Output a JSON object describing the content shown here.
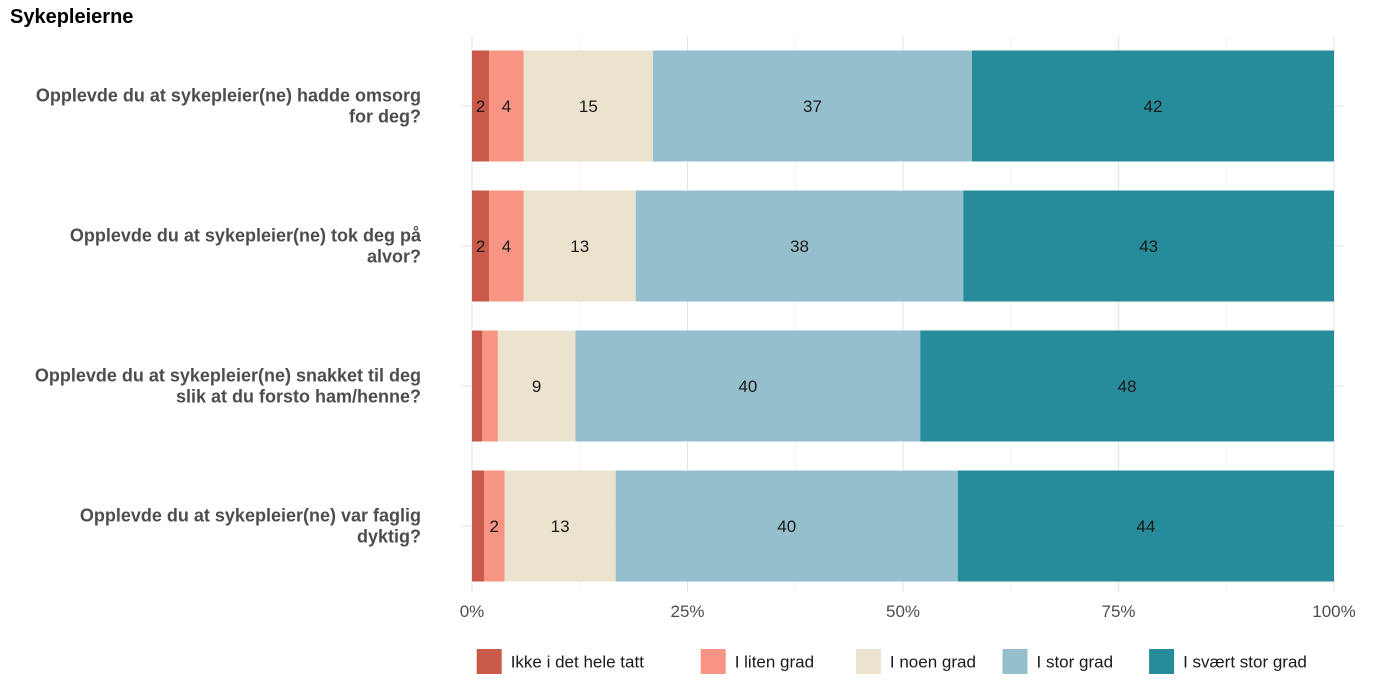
{
  "chart_data": {
    "type": "bar",
    "orientation": "horizontal",
    "stacked": "percent",
    "title": "Sykepleierne",
    "categories": [
      [
        "Opplevde du at sykepleier(ne) hadde omsorg",
        "for deg?"
      ],
      [
        "Opplevde du at sykepleier(ne) tok deg på",
        "alvor?"
      ],
      [
        "Opplevde du at sykepleier(ne) snakket til deg",
        "slik at du forsto ham/henne?"
      ],
      [
        "Opplevde du at sykepleier(ne) var faglig",
        "dyktig?"
      ]
    ],
    "series": [
      {
        "name": "Ikke i det hele tatt",
        "color": "#c95a4a",
        "values": [
          2,
          2,
          1.2,
          1.4
        ],
        "labels": [
          "2",
          "2",
          "",
          ""
        ]
      },
      {
        "name": "I liten grad",
        "color": "#f79483",
        "values": [
          4,
          4,
          1.8,
          2.4
        ],
        "labels": [
          "4",
          "4",
          "",
          "2"
        ]
      },
      {
        "name": "I noen grad",
        "color": "#ebe3cd",
        "values": [
          15,
          13,
          9,
          13
        ],
        "labels": [
          "15",
          "13",
          "9",
          "13"
        ]
      },
      {
        "name": "I stor grad",
        "color": "#95bfcc",
        "values": [
          37,
          38,
          40,
          40
        ],
        "labels": [
          "37",
          "38",
          "40",
          "40"
        ]
      },
      {
        "name": "I svært stor grad",
        "color": "#268b9b",
        "values": [
          42,
          43,
          48,
          44
        ],
        "labels": [
          "42",
          "43",
          "48",
          "44"
        ]
      }
    ],
    "x_ticks": [
      "0%",
      "25%",
      "50%",
      "75%",
      "100%"
    ],
    "xlim": [
      0,
      100
    ],
    "grid": true,
    "legend_position": "bottom"
  }
}
